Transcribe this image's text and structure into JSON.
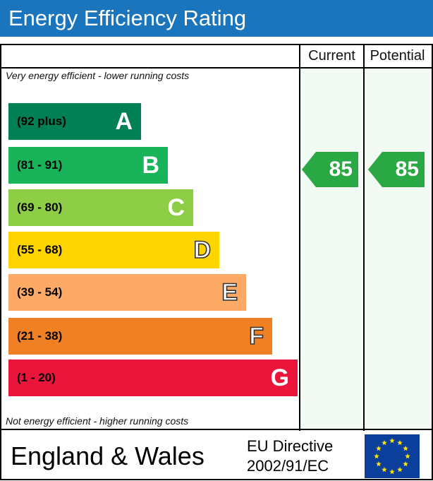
{
  "header": {
    "title": "Energy Efficiency Rating"
  },
  "columns": {
    "current": "Current",
    "potential": "Potential"
  },
  "notes": {
    "top": "Very energy efficient - lower running costs",
    "bottom": "Not energy efficient - higher running costs"
  },
  "bands": [
    {
      "range": "(92 plus)",
      "letter": "A",
      "color": "#008054"
    },
    {
      "range": "(81 - 91)",
      "letter": "B",
      "color": "#19b459"
    },
    {
      "range": "(69 - 80)",
      "letter": "C",
      "color": "#8dce46"
    },
    {
      "range": "(55 - 68)",
      "letter": "D",
      "color": "#ffd500"
    },
    {
      "range": "(39 - 54)",
      "letter": "E",
      "color": "#fcaa65"
    },
    {
      "range": "(21 - 38)",
      "letter": "F",
      "color": "#ef8023"
    },
    {
      "range": "(1 - 20)",
      "letter": "G",
      "color": "#e9153b"
    }
  ],
  "ratings": {
    "current": {
      "value": "85",
      "band": "B",
      "color": "#2aa844"
    },
    "potential": {
      "value": "85",
      "band": "B",
      "color": "#2aa844"
    }
  },
  "footer": {
    "region": "England & Wales",
    "directive_line1": "EU Directive",
    "directive_line2": "2002/91/EC",
    "flag": "eu-flag-icon"
  }
}
